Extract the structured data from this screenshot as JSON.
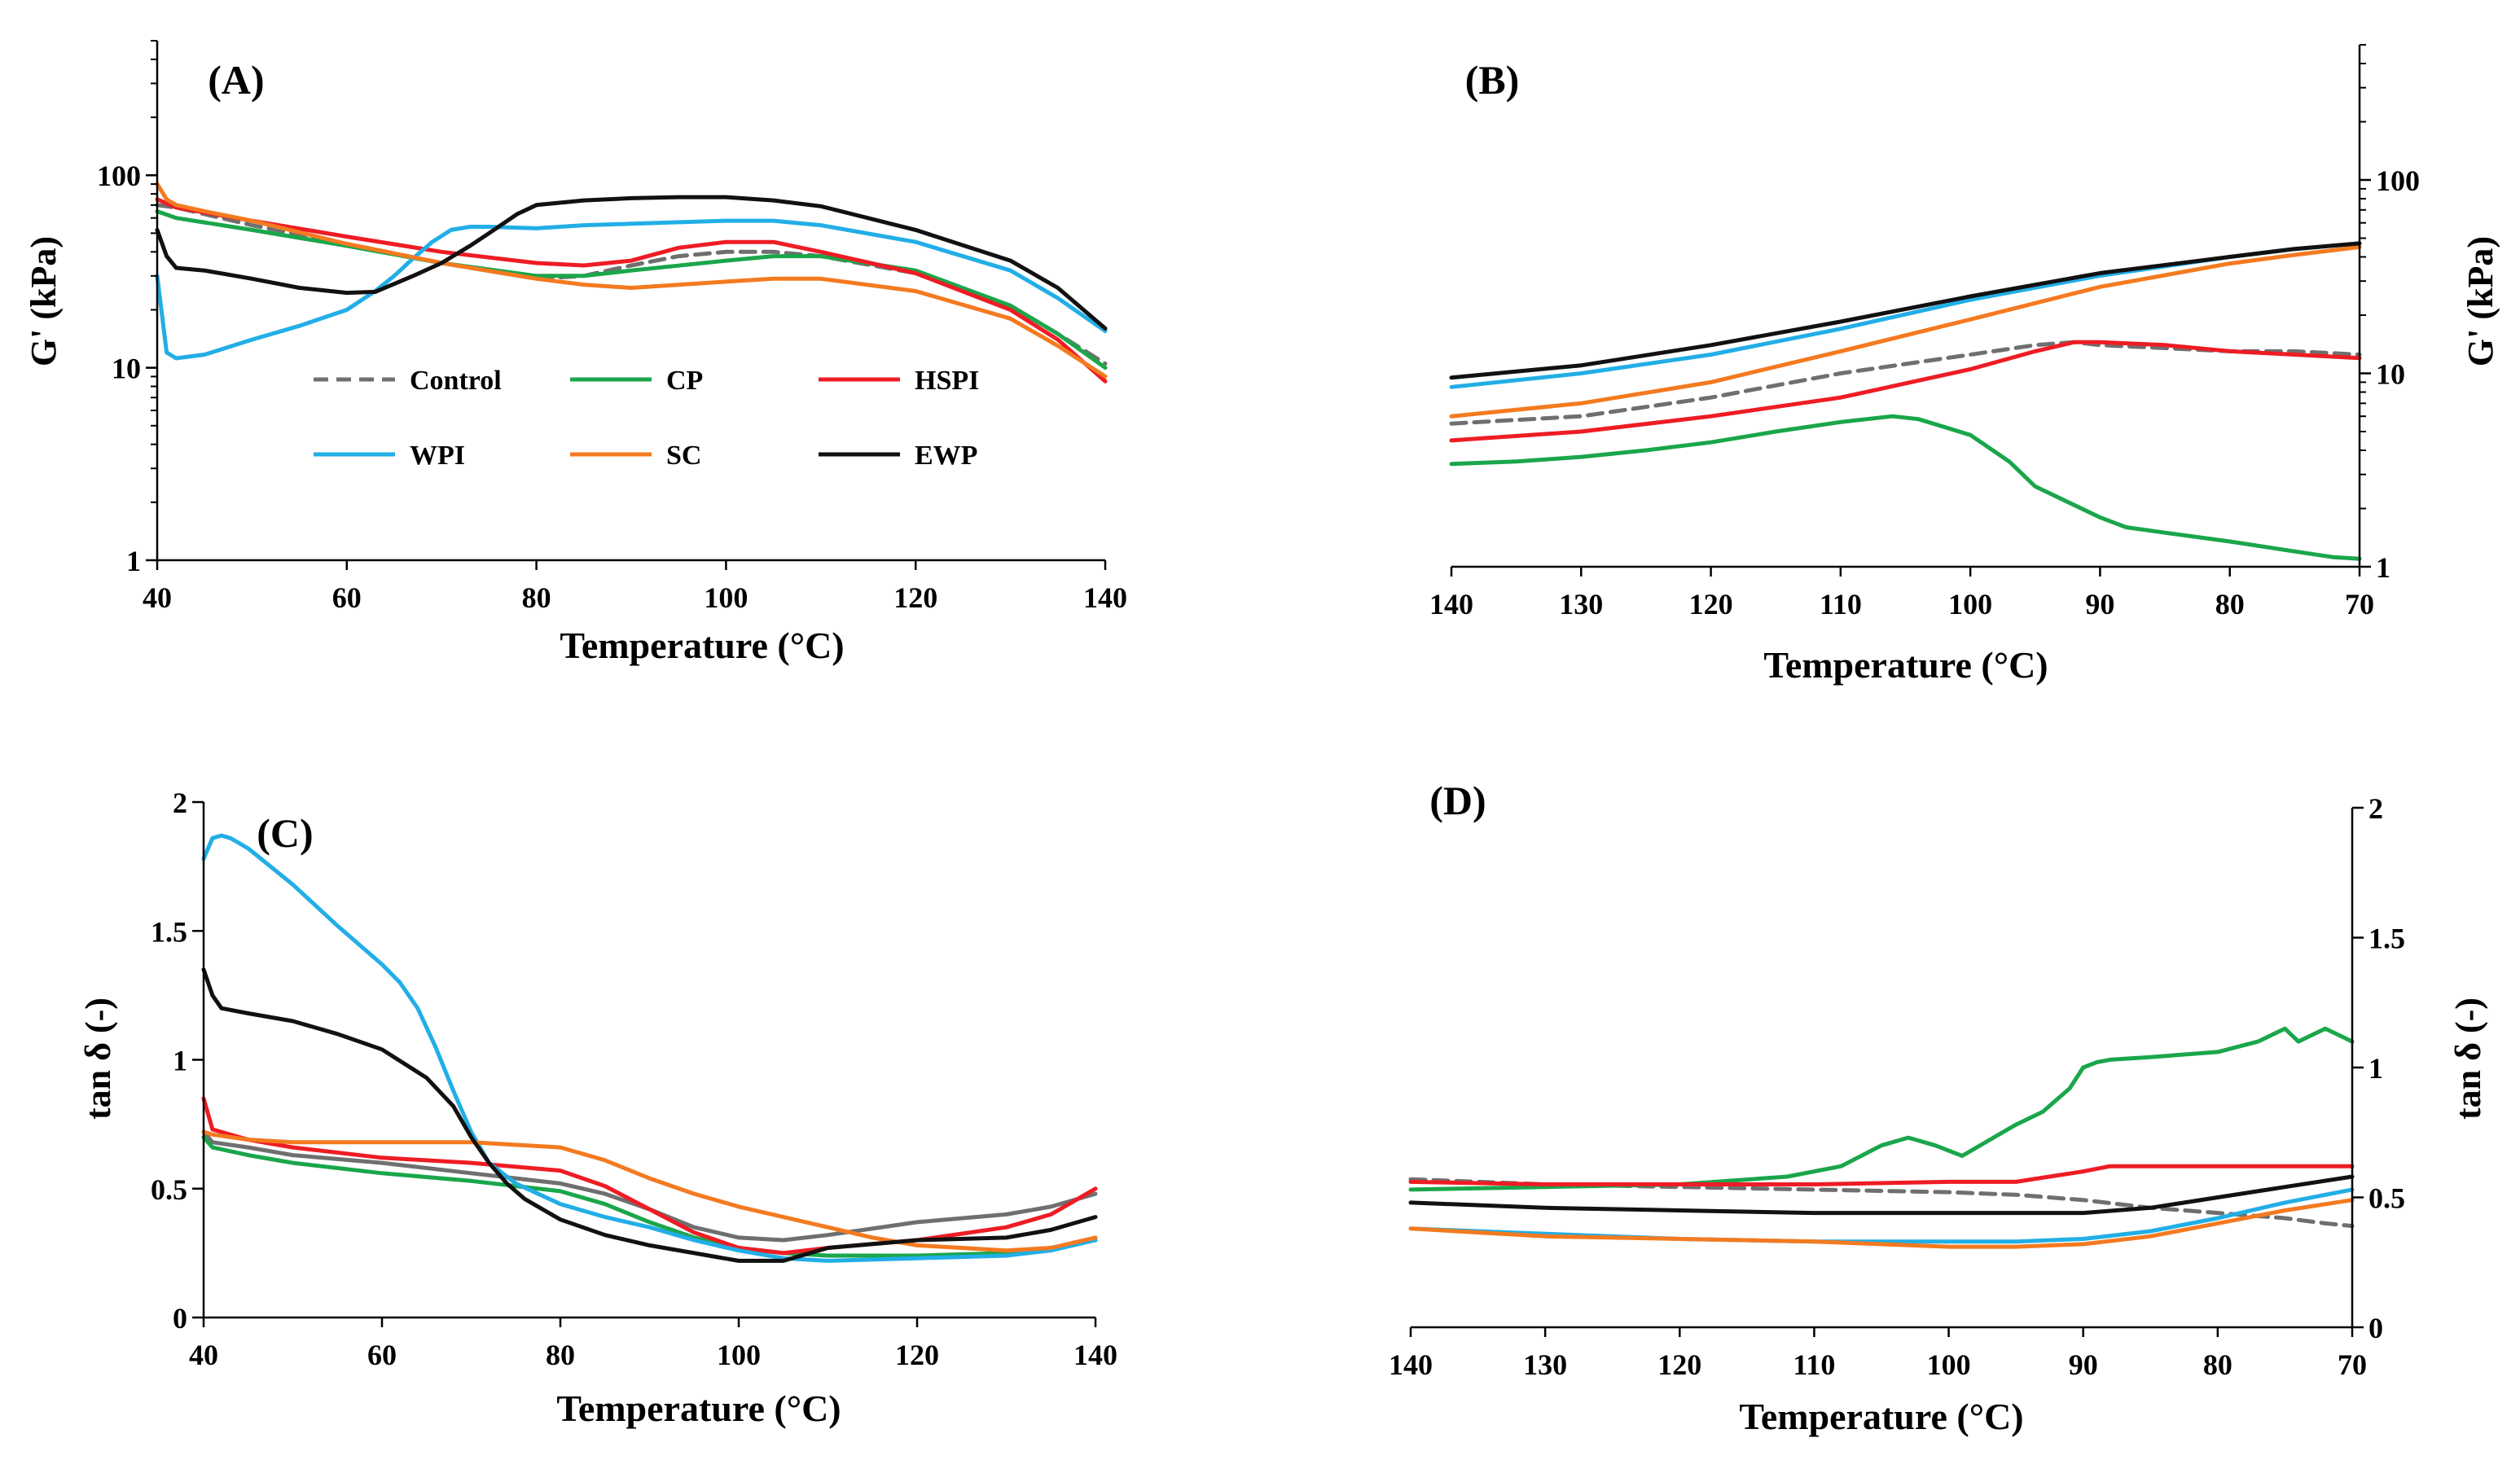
{
  "colors": {
    "Control": "#6f6f6f",
    "CP": "#1aa64a",
    "HSPI": "#ee1c24",
    "WPI": "#22aee6",
    "SC": "#f47a20",
    "EWP": "#111111"
  },
  "chart_data": [
    {
      "panel": "(A)",
      "type": "line",
      "xlabel": "Temperature (°C)",
      "ylabel": "G' (kPa)",
      "yscale": "log",
      "xlim": [
        40,
        140
      ],
      "ylim": [
        1,
        500
      ],
      "xticks": [
        "40",
        "60",
        "80",
        "100",
        "120",
        "140"
      ],
      "yticks": [
        "1",
        "10",
        "100"
      ],
      "legend": [
        "Control",
        "CP",
        "HSPI",
        "WPI",
        "SC",
        "EWP"
      ],
      "series": [
        {
          "name": "Control",
          "dashed": true,
          "x": [
            40,
            42,
            50,
            60,
            70,
            80,
            85,
            90,
            95,
            100,
            105,
            110,
            120,
            130,
            135,
            140
          ],
          "y": [
            70,
            68,
            55,
            44,
            35,
            29,
            30,
            34,
            38,
            40,
            40,
            38,
            31,
            21,
            15,
            10.5
          ]
        },
        {
          "name": "CP",
          "x": [
            40,
            42,
            50,
            60,
            70,
            80,
            85,
            90,
            100,
            105,
            110,
            120,
            130,
            135,
            140
          ],
          "y": [
            65,
            60,
            52,
            43,
            35,
            30,
            30,
            32,
            36,
            38,
            38,
            32,
            21,
            15,
            10
          ]
        },
        {
          "name": "HSPI",
          "x": [
            40,
            42,
            50,
            60,
            70,
            80,
            85,
            90,
            95,
            100,
            105,
            110,
            120,
            130,
            135,
            140
          ],
          "y": [
            75,
            68,
            58,
            48,
            40,
            35,
            34,
            36,
            42,
            45,
            45,
            40,
            31,
            20,
            14,
            8.5
          ]
        },
        {
          "name": "WPI",
          "x": [
            40,
            41,
            42,
            45,
            50,
            55,
            60,
            63,
            65,
            67,
            69,
            71,
            73,
            75,
            80,
            85,
            90,
            100,
            105,
            110,
            120,
            130,
            135,
            140
          ],
          "y": [
            30,
            12,
            11.2,
            11.7,
            14,
            16.5,
            20,
            25,
            30,
            37,
            45,
            52,
            54,
            54,
            53,
            55,
            56,
            58,
            58,
            55,
            45,
            32,
            23,
            15.5
          ]
        },
        {
          "name": "SC",
          "x": [
            40,
            41,
            42,
            45,
            50,
            60,
            70,
            80,
            85,
            90,
            100,
            105,
            110,
            120,
            130,
            135,
            140
          ],
          "y": [
            90,
            75,
            70,
            65,
            58,
            44,
            35,
            29,
            27,
            26,
            28,
            29,
            29,
            25,
            18,
            13,
            9
          ]
        },
        {
          "name": "EWP",
          "x": [
            40,
            41,
            42,
            45,
            50,
            55,
            60,
            63,
            67,
            70,
            73,
            75,
            78,
            80,
            85,
            90,
            95,
            100,
            105,
            110,
            120,
            130,
            135,
            140
          ],
          "y": [
            52,
            38,
            33,
            32,
            29,
            26,
            24.5,
            24.8,
            30,
            35,
            43,
            50,
            63,
            70,
            74,
            76,
            77,
            77,
            74,
            69,
            52,
            36,
            26,
            16
          ]
        }
      ]
    },
    {
      "panel": "(B)",
      "type": "line",
      "xlabel": "Temperature (°C)",
      "ylabel": "G' (kPa)",
      "yscale": "log",
      "xlim": [
        140,
        70
      ],
      "ylim": [
        1,
        500
      ],
      "xticks": [
        "140",
        "130",
        "120",
        "110",
        "100",
        "90",
        "80",
        "70"
      ],
      "yticks": [
        "1",
        "10",
        "100"
      ],
      "series": [
        {
          "name": "Control",
          "dashed": true,
          "x": [
            140,
            130,
            120,
            110,
            100,
            95,
            92,
            90,
            85,
            80,
            75,
            70
          ],
          "y": [
            5.5,
            6,
            7.5,
            10,
            12.5,
            14,
            14.5,
            14,
            13.5,
            13,
            13,
            12.5
          ]
        },
        {
          "name": "CP",
          "x": [
            140,
            135,
            130,
            125,
            120,
            115,
            110,
            106,
            104,
            100,
            97,
            95,
            90,
            88,
            85,
            80,
            75,
            72,
            70
          ],
          "y": [
            3.4,
            3.5,
            3.7,
            4,
            4.4,
            5,
            5.6,
            6,
            5.8,
            4.8,
            3.5,
            2.6,
            1.8,
            1.6,
            1.5,
            1.35,
            1.2,
            1.12,
            1.1
          ]
        },
        {
          "name": "HSPI",
          "x": [
            140,
            130,
            120,
            110,
            100,
            95,
            92,
            90,
            85,
            80,
            75,
            70
          ],
          "y": [
            4.5,
            5,
            6,
            7.5,
            10.5,
            13,
            14.5,
            14.5,
            14,
            13,
            12.5,
            12
          ]
        },
        {
          "name": "WPI",
          "x": [
            140,
            130,
            120,
            110,
            100,
            90,
            80,
            75,
            70
          ],
          "y": [
            8.5,
            10,
            12.5,
            17,
            24,
            32,
            40,
            44,
            47
          ]
        },
        {
          "name": "SC",
          "x": [
            140,
            130,
            120,
            110,
            100,
            90,
            80,
            75,
            70
          ],
          "y": [
            6,
            7,
            9,
            13,
            19,
            28,
            37,
            41,
            45
          ]
        },
        {
          "name": "EWP",
          "x": [
            140,
            130,
            120,
            110,
            100,
            90,
            80,
            75,
            70
          ],
          "y": [
            9.5,
            11,
            14,
            18.5,
            25,
            33,
            40,
            44,
            47
          ]
        }
      ]
    },
    {
      "panel": "(C)",
      "type": "line",
      "xlabel": "Temperature (°C)",
      "ylabel": "tan δ (-)",
      "xlim": [
        40,
        140
      ],
      "ylim": [
        0,
        2
      ],
      "xticks": [
        "40",
        "60",
        "80",
        "100",
        "120",
        "140"
      ],
      "yticks": [
        "0",
        "0.5",
        "1",
        "1.5",
        "2"
      ],
      "series": [
        {
          "name": "Control",
          "dashed": false,
          "x": [
            40,
            41,
            45,
            50,
            60,
            70,
            80,
            85,
            90,
            95,
            100,
            105,
            110,
            120,
            130,
            135,
            140
          ],
          "y": [
            0.72,
            0.68,
            0.66,
            0.63,
            0.6,
            0.56,
            0.52,
            0.48,
            0.42,
            0.35,
            0.31,
            0.3,
            0.32,
            0.37,
            0.4,
            0.43,
            0.48
          ]
        },
        {
          "name": "CP",
          "x": [
            40,
            41,
            45,
            50,
            60,
            70,
            80,
            85,
            90,
            95,
            100,
            105,
            110,
            120,
            130,
            135,
            140
          ],
          "y": [
            0.7,
            0.66,
            0.63,
            0.6,
            0.56,
            0.53,
            0.49,
            0.44,
            0.37,
            0.31,
            0.27,
            0.25,
            0.24,
            0.24,
            0.25,
            0.27,
            0.3
          ]
        },
        {
          "name": "HSPI",
          "x": [
            40,
            41,
            45,
            50,
            60,
            70,
            80,
            85,
            90,
            95,
            100,
            105,
            110,
            120,
            130,
            135,
            140
          ],
          "y": [
            0.85,
            0.73,
            0.69,
            0.66,
            0.62,
            0.6,
            0.57,
            0.51,
            0.42,
            0.33,
            0.27,
            0.25,
            0.27,
            0.3,
            0.35,
            0.4,
            0.5
          ]
        },
        {
          "name": "WPI",
          "x": [
            40,
            41,
            42,
            43,
            45,
            50,
            55,
            60,
            62,
            64,
            66,
            68,
            70,
            72,
            75,
            80,
            85,
            90,
            95,
            100,
            105,
            110,
            120,
            130,
            135,
            140
          ],
          "y": [
            1.78,
            1.86,
            1.87,
            1.86,
            1.82,
            1.68,
            1.52,
            1.37,
            1.3,
            1.2,
            1.05,
            0.88,
            0.72,
            0.6,
            0.52,
            0.44,
            0.39,
            0.35,
            0.3,
            0.26,
            0.23,
            0.22,
            0.23,
            0.24,
            0.26,
            0.3
          ]
        },
        {
          "name": "SC",
          "x": [
            40,
            41,
            45,
            50,
            60,
            70,
            80,
            85,
            90,
            95,
            100,
            105,
            110,
            115,
            120,
            125,
            130,
            135,
            140
          ],
          "y": [
            0.72,
            0.71,
            0.69,
            0.68,
            0.68,
            0.68,
            0.66,
            0.61,
            0.54,
            0.48,
            0.43,
            0.39,
            0.35,
            0.31,
            0.28,
            0.27,
            0.26,
            0.27,
            0.31
          ]
        },
        {
          "name": "EWP",
          "x": [
            40,
            41,
            42,
            45,
            50,
            55,
            60,
            65,
            68,
            70,
            72,
            74,
            76,
            78,
            80,
            85,
            90,
            95,
            100,
            105,
            110,
            120,
            130,
            135,
            140
          ],
          "y": [
            1.35,
            1.25,
            1.2,
            1.18,
            1.15,
            1.1,
            1.04,
            0.93,
            0.82,
            0.7,
            0.6,
            0.52,
            0.46,
            0.42,
            0.38,
            0.32,
            0.28,
            0.25,
            0.22,
            0.22,
            0.27,
            0.3,
            0.31,
            0.34,
            0.39
          ]
        }
      ]
    },
    {
      "panel": "(D)",
      "type": "line",
      "xlabel": "Temperature (°C)",
      "ylabel": "tan δ (-)",
      "xlim": [
        140,
        70
      ],
      "ylim": [
        0,
        2
      ],
      "xticks": [
        "140",
        "130",
        "120",
        "110",
        "100",
        "90",
        "80",
        "70"
      ],
      "yticks": [
        "0",
        "0.5",
        "1",
        "1.5",
        "2"
      ],
      "series": [
        {
          "name": "Control",
          "dashed": true,
          "x": [
            140,
            130,
            120,
            110,
            100,
            95,
            90,
            85,
            80,
            75,
            72,
            70
          ],
          "y": [
            0.57,
            0.55,
            0.54,
            0.53,
            0.52,
            0.51,
            0.49,
            0.46,
            0.44,
            0.42,
            0.4,
            0.39
          ]
        },
        {
          "name": "CP",
          "x": [
            140,
            130,
            120,
            112,
            108,
            105,
            103,
            101,
            99,
            97,
            95,
            93,
            91,
            90,
            89,
            88,
            85,
            80,
            77,
            75,
            74,
            72,
            70
          ],
          "y": [
            0.53,
            0.54,
            0.55,
            0.58,
            0.62,
            0.7,
            0.73,
            0.7,
            0.66,
            0.72,
            0.78,
            0.83,
            0.92,
            1.0,
            1.02,
            1.03,
            1.04,
            1.06,
            1.1,
            1.15,
            1.1,
            1.15,
            1.1
          ]
        },
        {
          "name": "HSPI",
          "x": [
            140,
            130,
            120,
            110,
            100,
            95,
            90,
            88,
            85,
            80,
            75,
            70
          ],
          "y": [
            0.56,
            0.55,
            0.55,
            0.55,
            0.56,
            0.56,
            0.6,
            0.62,
            0.62,
            0.62,
            0.62,
            0.62
          ]
        },
        {
          "name": "WPI",
          "x": [
            140,
            130,
            120,
            110,
            100,
            95,
            90,
            85,
            80,
            75,
            70
          ],
          "y": [
            0.38,
            0.36,
            0.34,
            0.33,
            0.33,
            0.33,
            0.34,
            0.37,
            0.42,
            0.48,
            0.53
          ]
        },
        {
          "name": "SC",
          "x": [
            140,
            130,
            120,
            110,
            100,
            95,
            90,
            85,
            80,
            75,
            70
          ],
          "y": [
            0.38,
            0.35,
            0.34,
            0.33,
            0.31,
            0.31,
            0.32,
            0.35,
            0.4,
            0.45,
            0.49
          ]
        },
        {
          "name": "EWP",
          "x": [
            140,
            130,
            120,
            110,
            100,
            95,
            90,
            85,
            80,
            75,
            70
          ],
          "y": [
            0.48,
            0.46,
            0.45,
            0.44,
            0.44,
            0.44,
            0.44,
            0.46,
            0.5,
            0.54,
            0.58
          ]
        }
      ]
    }
  ]
}
